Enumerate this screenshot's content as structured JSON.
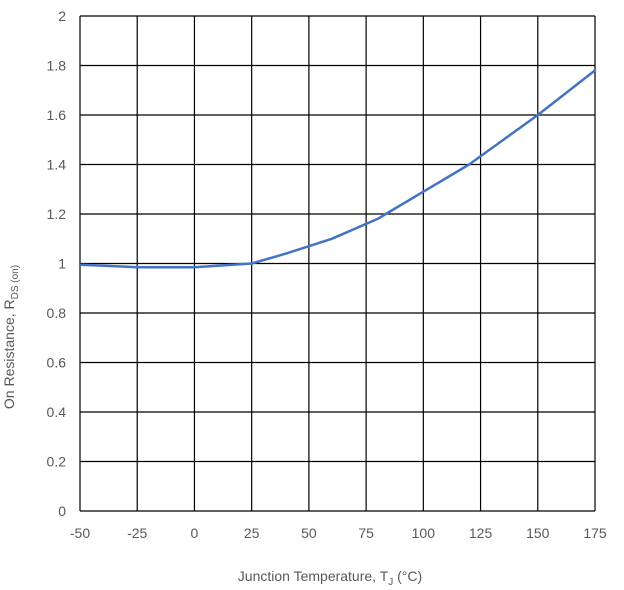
{
  "chart_data": {
    "type": "line",
    "title": "",
    "xlabel": {
      "main": "Junction Temperature, T",
      "subscript": "J",
      "suffix": " (°C)"
    },
    "ylabel": {
      "main": "On Resistance, R",
      "subscript": "DS (on)"
    },
    "xlim": [
      -50,
      175
    ],
    "ylim": [
      0,
      2
    ],
    "x_ticks": [
      "-50",
      "-25",
      "0",
      "25",
      "50",
      "75",
      "100",
      "125",
      "150",
      "175"
    ],
    "y_ticks": [
      "0",
      "0.2",
      "0.4",
      "0.6",
      "0.8",
      "1",
      "1.2",
      "1.4",
      "1.6",
      "1.8",
      "2"
    ],
    "grid": true,
    "legend": "none",
    "line_color": "#4472C4",
    "grid_color": "#000000",
    "series": [
      {
        "x": [
          -50,
          -25,
          0,
          25,
          40,
          60,
          80,
          100,
          120,
          150,
          175
        ],
        "y": [
          0.995,
          0.985,
          0.985,
          1.0,
          1.04,
          1.1,
          1.18,
          1.29,
          1.4,
          1.6,
          1.78
        ]
      }
    ]
  }
}
